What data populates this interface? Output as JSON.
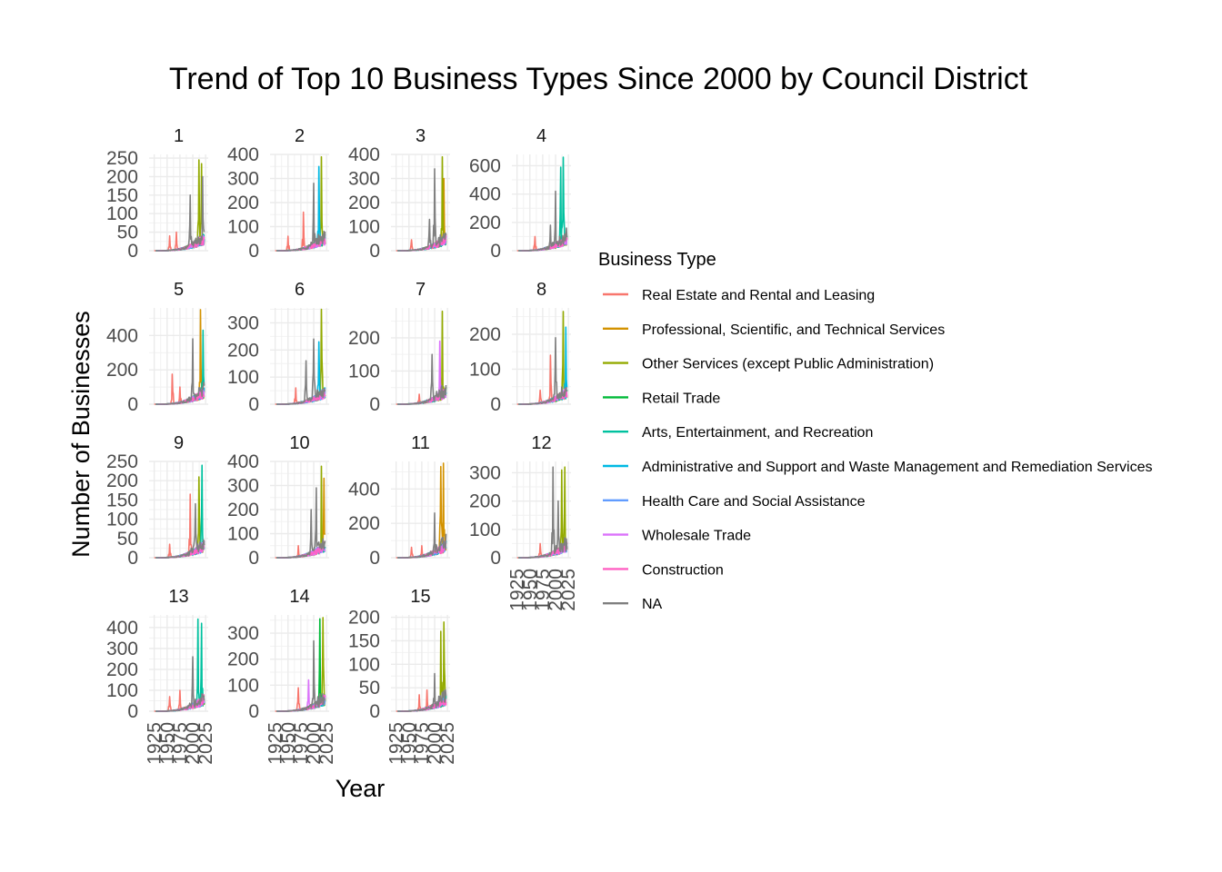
{
  "chart_data": {
    "type": "line",
    "title": "Trend of Top 10 Business Types Since 2000 by Council District",
    "xlabel": "Year",
    "ylabel": "Number of Businesses",
    "legend": {
      "title": "Business Type",
      "position": "right",
      "entries": [
        {
          "name": "Real Estate and Rental and Leasing",
          "color": "#F8766D"
        },
        {
          "name": "Professional, Scientific, and Technical Services",
          "color": "#D39200"
        },
        {
          "name": "Other Services (except Public Administration)",
          "color": "#93AA00"
        },
        {
          "name": "Retail Trade",
          "color": "#00BA38"
        },
        {
          "name": "Arts, Entertainment, and Recreation",
          "color": "#00C19F"
        },
        {
          "name": "Administrative and Support and Waste Management and Remediation Services",
          "color": "#00B9E3"
        },
        {
          "name": "Health Care and Social Assistance",
          "color": "#619CFF"
        },
        {
          "name": "Wholesale Trade",
          "color": "#DB72FB"
        },
        {
          "name": "Construction",
          "color": "#FF61C3"
        },
        {
          "name": "NA",
          "color": "#808080"
        }
      ]
    },
    "grid": true,
    "x_range": [
      1915,
      2030
    ],
    "x_ticks": [
      1925,
      1950,
      1975,
      2000,
      2025
    ],
    "facets": [
      {
        "label": "1",
        "ylim": [
          0,
          260
        ],
        "y_ticks": [
          0,
          50,
          100,
          150,
          200,
          250
        ],
        "peaks": [
          {
            "series": 0,
            "x": 1955,
            "y": 40
          },
          {
            "series": 0,
            "x": 1968,
            "y": 50
          },
          {
            "series": 9,
            "x": 1995,
            "y": 150
          },
          {
            "series": 2,
            "x": 2012,
            "y": 245
          },
          {
            "series": 2,
            "x": 2017,
            "y": 235
          },
          {
            "series": 9,
            "x": 2019,
            "y": 200
          }
        ]
      },
      {
        "label": "2",
        "ylim": [
          0,
          400
        ],
        "y_ticks": [
          0,
          100,
          200,
          300,
          400
        ],
        "peaks": [
          {
            "series": 0,
            "x": 1950,
            "y": 60
          },
          {
            "series": 0,
            "x": 1980,
            "y": 160
          },
          {
            "series": 9,
            "x": 2000,
            "y": 280
          },
          {
            "series": 5,
            "x": 2010,
            "y": 350
          },
          {
            "series": 2,
            "x": 2015,
            "y": 390
          }
        ]
      },
      {
        "label": "3",
        "ylim": [
          0,
          400
        ],
        "y_ticks": [
          0,
          100,
          200,
          300,
          400
        ],
        "peaks": [
          {
            "series": 0,
            "x": 1955,
            "y": 45
          },
          {
            "series": 9,
            "x": 1990,
            "y": 130
          },
          {
            "series": 9,
            "x": 2000,
            "y": 340
          },
          {
            "series": 2,
            "x": 2015,
            "y": 390
          },
          {
            "series": 1,
            "x": 2018,
            "y": 300
          }
        ]
      },
      {
        "label": "4",
        "ylim": [
          0,
          680
        ],
        "y_ticks": [
          0,
          200,
          400,
          600
        ],
        "peaks": [
          {
            "series": 0,
            "x": 1960,
            "y": 100
          },
          {
            "series": 9,
            "x": 1990,
            "y": 180
          },
          {
            "series": 9,
            "x": 2000,
            "y": 420
          },
          {
            "series": 4,
            "x": 2010,
            "y": 590
          },
          {
            "series": 4,
            "x": 2015,
            "y": 660
          }
        ]
      },
      {
        "label": "5",
        "ylim": [
          0,
          560
        ],
        "y_ticks": [
          0,
          200,
          400
        ],
        "peaks": [
          {
            "series": 0,
            "x": 1960,
            "y": 175
          },
          {
            "series": 0,
            "x": 1975,
            "y": 100
          },
          {
            "series": 9,
            "x": 2000,
            "y": 380
          },
          {
            "series": 1,
            "x": 2015,
            "y": 550
          },
          {
            "series": 4,
            "x": 2020,
            "y": 430
          }
        ]
      },
      {
        "label": "6",
        "ylim": [
          0,
          355
        ],
        "y_ticks": [
          0,
          100,
          200,
          300
        ],
        "peaks": [
          {
            "series": 0,
            "x": 1965,
            "y": 60
          },
          {
            "series": 9,
            "x": 1985,
            "y": 160
          },
          {
            "series": 9,
            "x": 2000,
            "y": 240
          },
          {
            "series": 5,
            "x": 2010,
            "y": 230
          },
          {
            "series": 2,
            "x": 2015,
            "y": 350
          }
        ]
      },
      {
        "label": "7",
        "ylim": [
          0,
          290
        ],
        "y_ticks": [
          0,
          100,
          200
        ],
        "peaks": [
          {
            "series": 0,
            "x": 1970,
            "y": 30
          },
          {
            "series": 9,
            "x": 1995,
            "y": 150
          },
          {
            "series": 7,
            "x": 2010,
            "y": 190
          },
          {
            "series": 2,
            "x": 2015,
            "y": 280
          }
        ]
      },
      {
        "label": "8",
        "ylim": [
          0,
          275
        ],
        "y_ticks": [
          0,
          100,
          200
        ],
        "peaks": [
          {
            "series": 0,
            "x": 1970,
            "y": 40
          },
          {
            "series": 0,
            "x": 1990,
            "y": 140
          },
          {
            "series": 9,
            "x": 2000,
            "y": 190
          },
          {
            "series": 2,
            "x": 2015,
            "y": 265
          },
          {
            "series": 5,
            "x": 2020,
            "y": 220
          }
        ]
      },
      {
        "label": "9",
        "ylim": [
          0,
          250
        ],
        "y_ticks": [
          0,
          50,
          100,
          150,
          200,
          250
        ],
        "peaks": [
          {
            "series": 0,
            "x": 1955,
            "y": 35
          },
          {
            "series": 0,
            "x": 1995,
            "y": 165
          },
          {
            "series": 9,
            "x": 2005,
            "y": 140
          },
          {
            "series": 2,
            "x": 2012,
            "y": 210
          },
          {
            "series": 4,
            "x": 2018,
            "y": 240
          }
        ]
      },
      {
        "label": "10",
        "ylim": [
          0,
          400
        ],
        "y_ticks": [
          0,
          100,
          200,
          300,
          400
        ],
        "peaks": [
          {
            "series": 0,
            "x": 1970,
            "y": 50
          },
          {
            "series": 9,
            "x": 1995,
            "y": 200
          },
          {
            "series": 9,
            "x": 2005,
            "y": 290
          },
          {
            "series": 2,
            "x": 2015,
            "y": 380
          },
          {
            "series": 1,
            "x": 2020,
            "y": 330
          }
        ]
      },
      {
        "label": "11",
        "ylim": [
          0,
          560
        ],
        "y_ticks": [
          0,
          200,
          400
        ],
        "peaks": [
          {
            "series": 0,
            "x": 1955,
            "y": 60
          },
          {
            "series": 0,
            "x": 1975,
            "y": 70
          },
          {
            "series": 9,
            "x": 2000,
            "y": 260
          },
          {
            "series": 1,
            "x": 2012,
            "y": 530
          },
          {
            "series": 1,
            "x": 2017,
            "y": 550
          }
        ]
      },
      {
        "label": "12",
        "ylim": [
          0,
          340
        ],
        "y_ticks": [
          0,
          100,
          200,
          300
        ],
        "peaks": [
          {
            "series": 0,
            "x": 1970,
            "y": 50
          },
          {
            "series": 9,
            "x": 1995,
            "y": 320
          },
          {
            "series": 9,
            "x": 2005,
            "y": 200
          },
          {
            "series": 2,
            "x": 2012,
            "y": 310
          },
          {
            "series": 2,
            "x": 2018,
            "y": 320
          }
        ]
      },
      {
        "label": "13",
        "ylim": [
          0,
          460
        ],
        "y_ticks": [
          0,
          100,
          200,
          300,
          400
        ],
        "peaks": [
          {
            "series": 0,
            "x": 1955,
            "y": 70
          },
          {
            "series": 0,
            "x": 1975,
            "y": 100
          },
          {
            "series": 9,
            "x": 2000,
            "y": 260
          },
          {
            "series": 4,
            "x": 2010,
            "y": 440
          },
          {
            "series": 4,
            "x": 2017,
            "y": 420
          }
        ]
      },
      {
        "label": "14",
        "ylim": [
          0,
          370
        ],
        "y_ticks": [
          0,
          100,
          200,
          300
        ],
        "peaks": [
          {
            "series": 0,
            "x": 1970,
            "y": 90
          },
          {
            "series": 7,
            "x": 1990,
            "y": 120
          },
          {
            "series": 9,
            "x": 2000,
            "y": 270
          },
          {
            "series": 3,
            "x": 2012,
            "y": 355
          },
          {
            "series": 2,
            "x": 2018,
            "y": 360
          }
        ]
      },
      {
        "label": "15",
        "ylim": [
          0,
          205
        ],
        "y_ticks": [
          0,
          50,
          100,
          150,
          200
        ],
        "peaks": [
          {
            "series": 0,
            "x": 1970,
            "y": 35
          },
          {
            "series": 0,
            "x": 1985,
            "y": 45
          },
          {
            "series": 9,
            "x": 2000,
            "y": 80
          },
          {
            "series": 2,
            "x": 2012,
            "y": 170
          },
          {
            "series": 2,
            "x": 2018,
            "y": 190
          }
        ]
      }
    ]
  }
}
